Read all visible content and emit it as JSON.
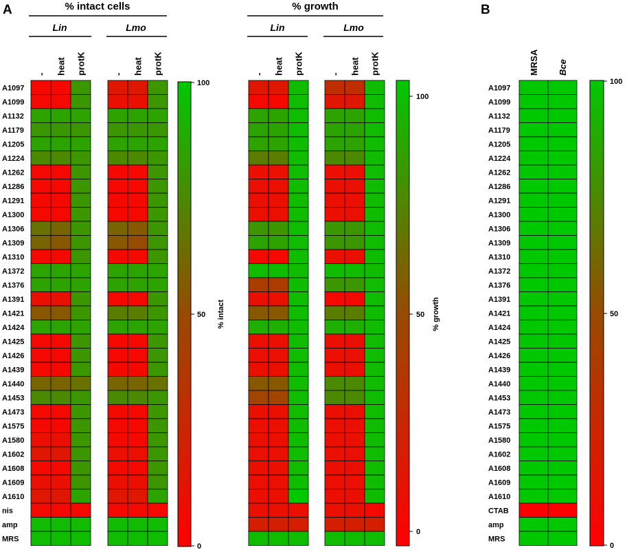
{
  "colors": {
    "low": "#ff0000",
    "mid": "#964b00",
    "high": "#00c800",
    "grid": "#000000"
  },
  "chart_data": [
    {
      "type": "heatmap",
      "panel": "A",
      "title": "% intact cells",
      "groups": [
        "Lin",
        "Lmo"
      ],
      "columns": [
        "-",
        "heat",
        "protK"
      ],
      "rows": [
        "A1097",
        "A1099",
        "A1132",
        "A1179",
        "A1205",
        "A1224",
        "A1262",
        "A1286",
        "A1291",
        "A1300",
        "A1306",
        "A1309",
        "A1310",
        "A1372",
        "A1376",
        "A1391",
        "A1421",
        "A1424",
        "A1425",
        "A1426",
        "A1439",
        "A1440",
        "A1453",
        "A1473",
        "A1575",
        "A1580",
        "A1602",
        "A1608",
        "A1609",
        "A1610",
        "nis",
        "amp",
        "MRS"
      ],
      "values": {
        "Lin": [
          [
            5,
            5,
            80
          ],
          [
            5,
            5,
            80
          ],
          [
            85,
            85,
            85
          ],
          [
            80,
            80,
            80
          ],
          [
            85,
            85,
            85
          ],
          [
            75,
            75,
            80
          ],
          [
            5,
            5,
            80
          ],
          [
            5,
            5,
            80
          ],
          [
            5,
            5,
            80
          ],
          [
            5,
            5,
            80
          ],
          [
            65,
            60,
            80
          ],
          [
            60,
            55,
            80
          ],
          [
            5,
            5,
            80
          ],
          [
            85,
            85,
            85
          ],
          [
            85,
            85,
            85
          ],
          [
            10,
            10,
            80
          ],
          [
            55,
            55,
            80
          ],
          [
            85,
            85,
            85
          ],
          [
            5,
            5,
            80
          ],
          [
            5,
            5,
            80
          ],
          [
            5,
            5,
            80
          ],
          [
            60,
            60,
            65
          ],
          [
            75,
            75,
            80
          ],
          [
            5,
            5,
            80
          ],
          [
            5,
            5,
            80
          ],
          [
            10,
            10,
            80
          ],
          [
            15,
            15,
            80
          ],
          [
            5,
            5,
            80
          ],
          [
            10,
            10,
            80
          ],
          [
            15,
            15,
            85
          ],
          [
            5,
            5,
            5
          ],
          [
            95,
            95,
            95
          ],
          [
            95,
            95,
            95
          ]
        ],
        "Lmo": [
          [
            15,
            15,
            80
          ],
          [
            10,
            10,
            80
          ],
          [
            85,
            85,
            85
          ],
          [
            80,
            80,
            80
          ],
          [
            85,
            85,
            85
          ],
          [
            75,
            75,
            80
          ],
          [
            5,
            5,
            80
          ],
          [
            5,
            5,
            80
          ],
          [
            5,
            5,
            80
          ],
          [
            5,
            5,
            80
          ],
          [
            60,
            55,
            80
          ],
          [
            55,
            50,
            80
          ],
          [
            5,
            5,
            80
          ],
          [
            85,
            85,
            85
          ],
          [
            85,
            85,
            85
          ],
          [
            5,
            5,
            80
          ],
          [
            70,
            70,
            80
          ],
          [
            85,
            85,
            85
          ],
          [
            5,
            5,
            80
          ],
          [
            5,
            5,
            80
          ],
          [
            5,
            5,
            80
          ],
          [
            60,
            60,
            65
          ],
          [
            75,
            75,
            80
          ],
          [
            5,
            5,
            80
          ],
          [
            5,
            5,
            80
          ],
          [
            5,
            5,
            80
          ],
          [
            10,
            10,
            80
          ],
          [
            5,
            5,
            80
          ],
          [
            10,
            10,
            80
          ],
          [
            15,
            15,
            85
          ],
          [
            5,
            5,
            5
          ],
          [
            95,
            95,
            95
          ],
          [
            95,
            95,
            95
          ]
        ]
      },
      "colorbar": {
        "label": "% intact",
        "ticks": [
          100,
          50,
          0
        ],
        "range": [
          0,
          100
        ]
      }
    },
    {
      "type": "heatmap",
      "title": "% growth",
      "groups": [
        "Lin",
        "Lmo"
      ],
      "columns": [
        "-",
        "heat",
        "protK"
      ],
      "rows": [
        "A1097",
        "A1099",
        "A1132",
        "A1179",
        "A1205",
        "A1224",
        "A1262",
        "A1286",
        "A1291",
        "A1300",
        "A1306",
        "A1309",
        "A1310",
        "A1372",
        "A1376",
        "A1391",
        "A1421",
        "A1424",
        "A1425",
        "A1426",
        "A1439",
        "A1440",
        "A1453",
        "A1473",
        "A1575",
        "A1580",
        "A1602",
        "A1608",
        "A1609",
        "A1610",
        "nis",
        "amp",
        "MRS"
      ],
      "values": {
        "Lin": [
          [
            15,
            15,
            95
          ],
          [
            5,
            5,
            95
          ],
          [
            85,
            85,
            95
          ],
          [
            85,
            85,
            95
          ],
          [
            85,
            85,
            95
          ],
          [
            70,
            70,
            95
          ],
          [
            10,
            10,
            95
          ],
          [
            10,
            10,
            95
          ],
          [
            10,
            10,
            95
          ],
          [
            10,
            10,
            95
          ],
          [
            80,
            80,
            95
          ],
          [
            85,
            85,
            95
          ],
          [
            5,
            5,
            95
          ],
          [
            95,
            95,
            95
          ],
          [
            40,
            40,
            95
          ],
          [
            10,
            10,
            95
          ],
          [
            55,
            55,
            95
          ],
          [
            90,
            90,
            95
          ],
          [
            10,
            10,
            95
          ],
          [
            10,
            10,
            95
          ],
          [
            10,
            10,
            95
          ],
          [
            55,
            55,
            95
          ],
          [
            45,
            45,
            95
          ],
          [
            10,
            10,
            95
          ],
          [
            10,
            10,
            95
          ],
          [
            10,
            10,
            95
          ],
          [
            10,
            10,
            95
          ],
          [
            10,
            10,
            95
          ],
          [
            10,
            10,
            95
          ],
          [
            10,
            10,
            100
          ],
          [
            10,
            10,
            10
          ],
          [
            20,
            20,
            20
          ],
          [
            95,
            95,
            95
          ]
        ],
        "Lmo": [
          [
            30,
            30,
            95
          ],
          [
            15,
            15,
            95
          ],
          [
            85,
            85,
            95
          ],
          [
            85,
            85,
            95
          ],
          [
            85,
            85,
            95
          ],
          [
            75,
            75,
            95
          ],
          [
            10,
            10,
            95
          ],
          [
            10,
            10,
            95
          ],
          [
            10,
            10,
            95
          ],
          [
            10,
            10,
            95
          ],
          [
            80,
            80,
            95
          ],
          [
            80,
            80,
            95
          ],
          [
            10,
            10,
            95
          ],
          [
            95,
            95,
            95
          ],
          [
            80,
            80,
            95
          ],
          [
            5,
            5,
            95
          ],
          [
            70,
            70,
            95
          ],
          [
            90,
            90,
            95
          ],
          [
            10,
            10,
            95
          ],
          [
            10,
            10,
            95
          ],
          [
            10,
            10,
            95
          ],
          [
            75,
            75,
            95
          ],
          [
            75,
            75,
            95
          ],
          [
            10,
            10,
            95
          ],
          [
            10,
            10,
            95
          ],
          [
            10,
            10,
            95
          ],
          [
            10,
            10,
            95
          ],
          [
            10,
            10,
            95
          ],
          [
            10,
            10,
            95
          ],
          [
            10,
            10,
            95
          ],
          [
            10,
            10,
            5
          ],
          [
            20,
            20,
            20
          ],
          [
            95,
            95,
            95
          ]
        ]
      },
      "colorbar": {
        "label": "% growth",
        "ticks": [
          100,
          50,
          0
        ],
        "range": [
          0,
          100
        ]
      }
    },
    {
      "type": "heatmap",
      "panel": "B",
      "title": "",
      "columns": [
        "MRSA",
        "Bce"
      ],
      "rows": [
        "A1097",
        "A1099",
        "A1132",
        "A1179",
        "A1205",
        "A1224",
        "A1262",
        "A1286",
        "A1291",
        "A1300",
        "A1306",
        "A1309",
        "A1310",
        "A1372",
        "A1376",
        "A1391",
        "A1421",
        "A1424",
        "A1425",
        "A1426",
        "A1439",
        "A1440",
        "A1453",
        "A1473",
        "A1575",
        "A1580",
        "A1602",
        "A1608",
        "A1609",
        "A1610",
        "CTAB",
        "amp",
        "MRS"
      ],
      "values": [
        [
          100,
          100
        ],
        [
          100,
          100
        ],
        [
          100,
          100
        ],
        [
          100,
          100
        ],
        [
          100,
          100
        ],
        [
          100,
          100
        ],
        [
          100,
          100
        ],
        [
          100,
          100
        ],
        [
          100,
          100
        ],
        [
          100,
          100
        ],
        [
          100,
          100
        ],
        [
          100,
          100
        ],
        [
          100,
          100
        ],
        [
          100,
          100
        ],
        [
          100,
          100
        ],
        [
          100,
          100
        ],
        [
          100,
          100
        ],
        [
          100,
          100
        ],
        [
          100,
          100
        ],
        [
          100,
          100
        ],
        [
          100,
          100
        ],
        [
          100,
          100
        ],
        [
          100,
          100
        ],
        [
          100,
          100
        ],
        [
          100,
          100
        ],
        [
          100,
          100
        ],
        [
          100,
          100
        ],
        [
          100,
          100
        ],
        [
          100,
          100
        ],
        [
          100,
          100
        ],
        [
          0,
          0
        ],
        [
          100,
          100
        ],
        [
          100,
          100
        ]
      ],
      "colorbar": {
        "label": "",
        "ticks": [
          100,
          50,
          0
        ],
        "range": [
          0,
          100
        ]
      }
    }
  ]
}
